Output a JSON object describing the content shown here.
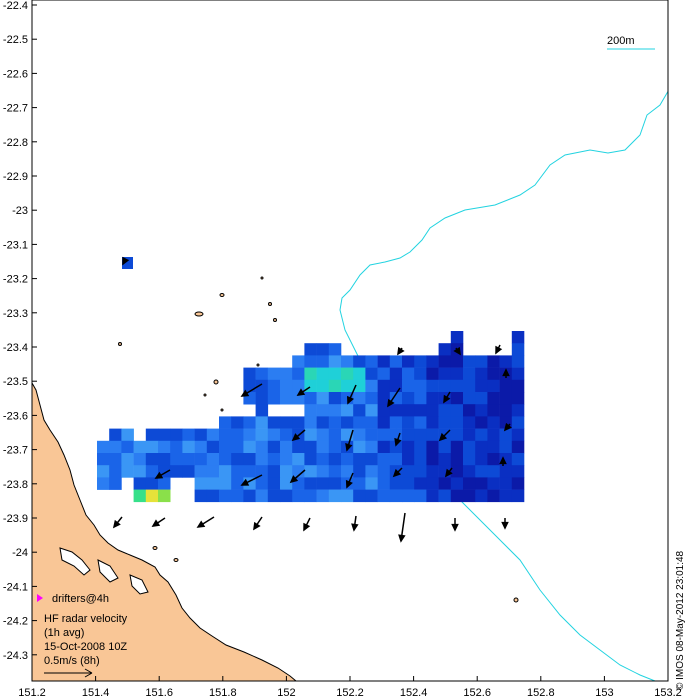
{
  "map": {
    "x_ticks": [
      "151.2",
      "151.4",
      "151.6",
      "151.8",
      "152",
      "152.2",
      "152.4",
      "152.6",
      "152.8",
      "153",
      "153.2"
    ],
    "y_ticks": [
      "-22.4",
      "-22.5",
      "-22.6",
      "-22.7",
      "-22.8",
      "-22.9",
      "-23",
      "-23.1",
      "-23.2",
      "-23.3",
      "-23.4",
      "-23.5",
      "-23.6",
      "-23.7",
      "-23.8",
      "-23.9",
      "-24",
      "-24.1",
      "-24.2",
      "-24.3"
    ],
    "x_range": [
      151.2,
      153.2
    ],
    "y_range": [
      -24.35,
      -22.4
    ],
    "depth_contour_label": "200m",
    "drifters_label": "drifters@4h",
    "legend_lines": [
      "HF radar velocity",
      "(1h avg)",
      "15-Oct-2008 10Z",
      "0.5m/s (8h)"
    ],
    "credit": "© IMOS 08-May-2012 23:01:48",
    "colors": {
      "land": "#f9c696",
      "contour": "#22d3e0",
      "drifter_marker": "#ff00ff",
      "arrow": "#000000"
    }
  }
}
